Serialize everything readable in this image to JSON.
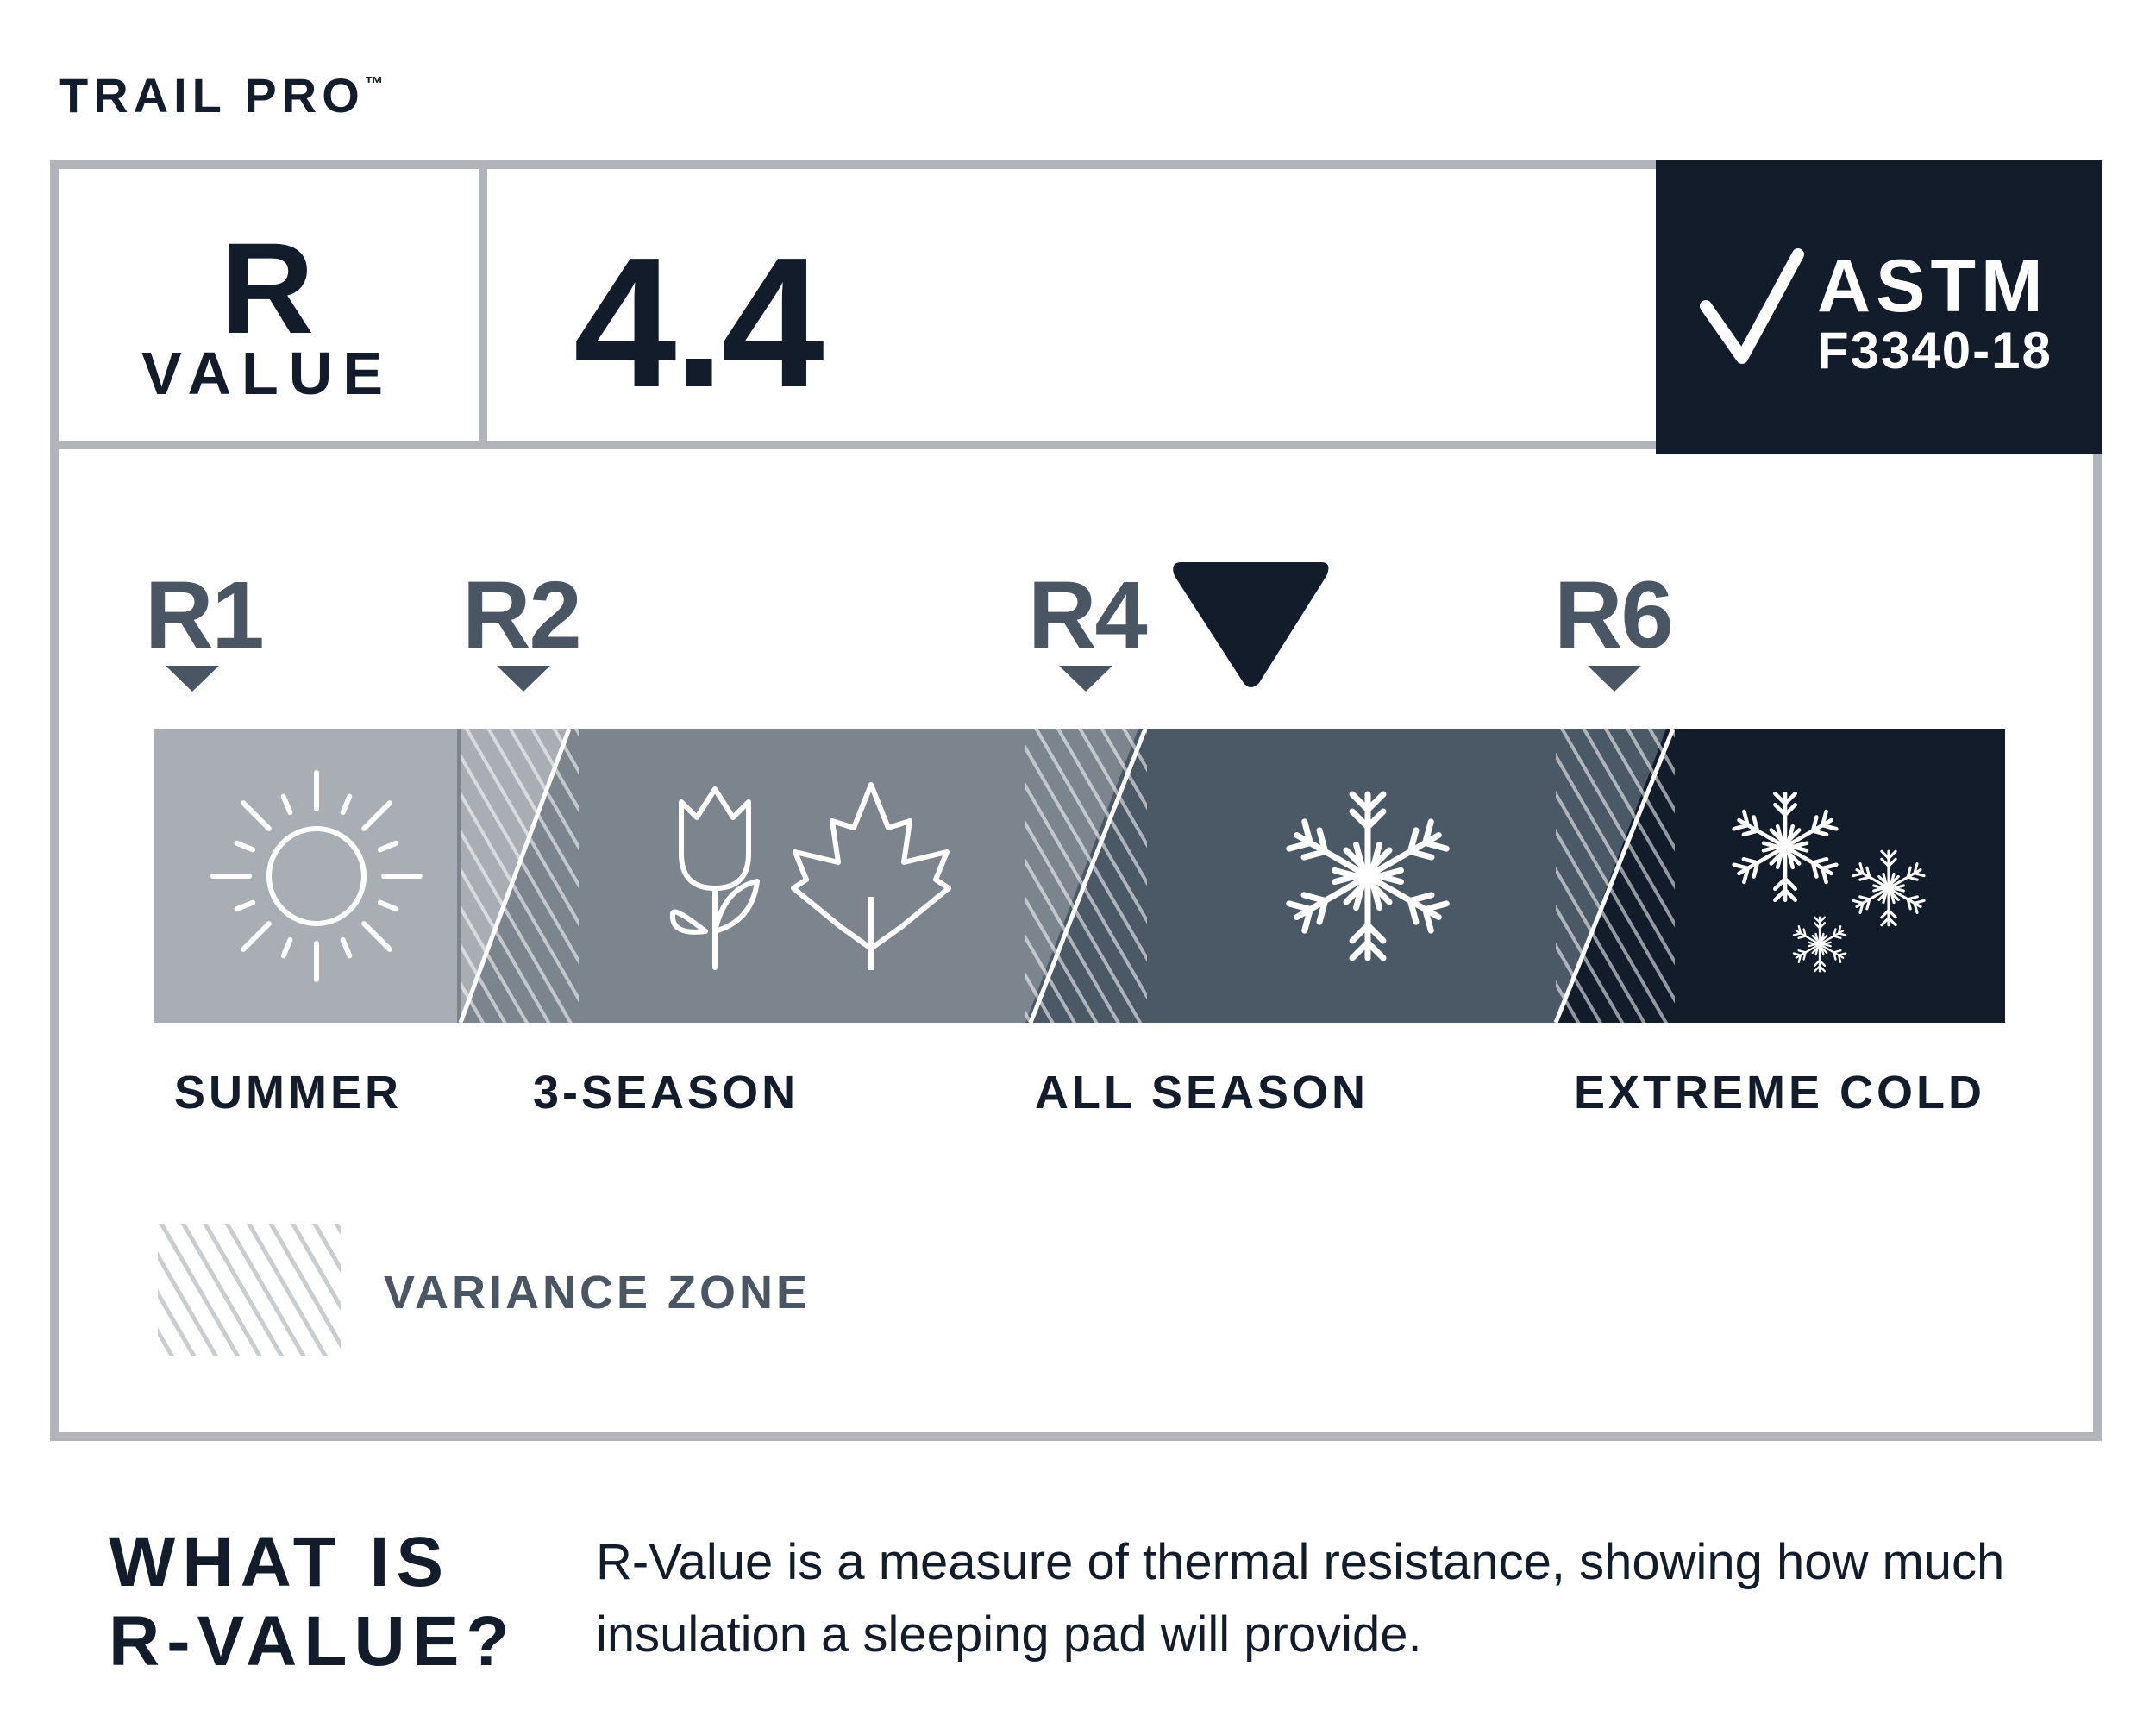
{
  "brand": {
    "name": "TRAIL PRO",
    "trademark": "™"
  },
  "rating_box": {
    "r_label": "R",
    "value_label": "VALUE",
    "r_value": "4.4"
  },
  "certification": {
    "name": "ASTM",
    "code": "F3340-18",
    "icon": "checkmark-icon"
  },
  "scale": {
    "markers": [
      {
        "label": "R1"
      },
      {
        "label": "R2"
      },
      {
        "label": "R4"
      },
      {
        "label": "R6"
      }
    ],
    "indicator_value": 4.4,
    "seasons": [
      {
        "label": "SUMMER",
        "icon": "sun-icon",
        "color": "#a9aeb4"
      },
      {
        "label": "3-SEASON",
        "icon": "tulip-and-maple-leaf-icons",
        "color": "#7c858d"
      },
      {
        "label": "ALL SEASON",
        "icon": "snowflake-icon",
        "color": "#4b5866"
      },
      {
        "label": "EXTREME COLD",
        "icon": "snowflakes-icon",
        "color": "#121c2b"
      }
    ]
  },
  "legend": {
    "variance_label": "VARIANCE ZONE"
  },
  "footer": {
    "question_line1": "WHAT IS",
    "question_line2": "R-VALUE?",
    "description": "R-Value is a measure of thermal resistance, showing how much insulation a sleeping pad will provide."
  },
  "colors": {
    "navy": "#121c2b",
    "slate": "#4b5664",
    "frame": "#b1b5ba"
  }
}
